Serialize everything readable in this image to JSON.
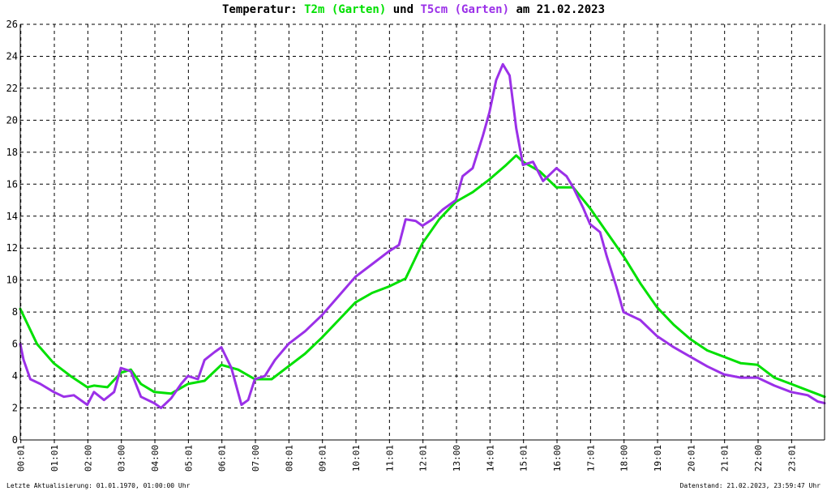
{
  "title": {
    "prefix": "Temperatur: ",
    "series1": "T2m (Garten)",
    "mid": " und ",
    "series2": "T5cm (Garten)",
    "suffix": " am 21.02.2023"
  },
  "footer": {
    "left": "Letzte Aktualisierung: 01.01.1970, 01:00:00 Uhr",
    "right": "Datenstand: 21.02.2023, 23:59:47 Uhr"
  },
  "colors": {
    "t2m": "#00e000",
    "t5cm": "#9b30e8",
    "grid": "#000000",
    "axis": "#000000"
  },
  "chart_data": {
    "type": "line",
    "ylim": [
      0,
      26
    ],
    "xlim": [
      0,
      24
    ],
    "yticks": [
      0,
      2,
      4,
      6,
      8,
      10,
      12,
      14,
      16,
      18,
      20,
      22,
      24,
      26
    ],
    "xticks": [
      "00:01",
      "01:01",
      "02:00",
      "03:00",
      "04:00",
      "05:01",
      "06:01",
      "07:00",
      "08:01",
      "09:01",
      "10:01",
      "11:01",
      "12:01",
      "13:00",
      "14:01",
      "15:01",
      "16:00",
      "17:01",
      "18:00",
      "19:01",
      "20:01",
      "21:01",
      "22:00",
      "23:01"
    ],
    "grid": true,
    "series": [
      {
        "name": "T2m (Garten)",
        "x": [
          0,
          0.5,
          1,
          1.5,
          2,
          2.2,
          2.6,
          3,
          3.3,
          3.6,
          4,
          4.5,
          5,
          5.5,
          6,
          6.5,
          7,
          7.5,
          8,
          8.5,
          9,
          9.5,
          10,
          10.5,
          11,
          11.5,
          12,
          12.5,
          13,
          13.5,
          14,
          14.5,
          14.8,
          15,
          15.5,
          16,
          16.5,
          17,
          17.5,
          18,
          18.5,
          19,
          19.5,
          20,
          20.5,
          21,
          21.5,
          22,
          22.5,
          23,
          23.5,
          24
        ],
        "values": [
          8.2,
          6.0,
          4.8,
          4.0,
          3.3,
          3.4,
          3.3,
          4.2,
          4.4,
          3.5,
          3.0,
          2.9,
          3.5,
          3.7,
          4.7,
          4.4,
          3.8,
          3.8,
          4.6,
          5.4,
          6.4,
          7.5,
          8.6,
          9.2,
          9.6,
          10.1,
          12.3,
          13.8,
          14.9,
          15.5,
          16.3,
          17.2,
          17.8,
          17.4,
          16.8,
          15.8,
          15.8,
          14.5,
          13.0,
          11.5,
          9.8,
          8.3,
          7.2,
          6.3,
          5.6,
          5.2,
          4.8,
          4.7,
          3.9,
          3.5,
          3.1,
          2.7
        ]
      },
      {
        "name": "T5cm (Garten)",
        "x": [
          0,
          0.1,
          0.3,
          0.6,
          1,
          1.3,
          1.6,
          2.0,
          2.2,
          2.5,
          2.8,
          3.0,
          3.3,
          3.6,
          4.0,
          4.2,
          4.5,
          4.8,
          5.0,
          5.3,
          5.5,
          5.8,
          6.0,
          6.3,
          6.6,
          6.8,
          7.0,
          7.3,
          7.6,
          8.0,
          8.5,
          9.0,
          9.5,
          10.0,
          10.5,
          11.0,
          11.3,
          11.5,
          11.8,
          12.0,
          12.3,
          12.6,
          13.0,
          13.2,
          13.5,
          13.8,
          14.0,
          14.2,
          14.4,
          14.6,
          14.8,
          15.0,
          15.3,
          15.6,
          16.0,
          16.3,
          16.5,
          16.8,
          17.0,
          17.3,
          17.5,
          17.8,
          18.0,
          18.5,
          19.0,
          19.5,
          20.0,
          20.5,
          21.0,
          21.5,
          22.0,
          22.5,
          23.0,
          23.5,
          23.8,
          24.0
        ],
        "values": [
          6.0,
          5.0,
          3.8,
          3.5,
          3.0,
          2.7,
          2.8,
          2.2,
          3.0,
          2.5,
          3.0,
          4.5,
          4.3,
          2.7,
          2.3,
          2.0,
          2.6,
          3.5,
          4.0,
          3.8,
          5.0,
          5.5,
          5.8,
          4.5,
          2.2,
          2.5,
          3.8,
          4.0,
          5.0,
          6.0,
          6.8,
          7.8,
          9.0,
          10.2,
          11.0,
          11.8,
          12.2,
          13.8,
          13.7,
          13.4,
          13.8,
          14.4,
          15.0,
          16.5,
          17.0,
          19.0,
          20.5,
          22.5,
          23.5,
          22.8,
          19.5,
          17.2,
          17.4,
          16.2,
          17.0,
          16.5,
          15.8,
          14.5,
          13.5,
          13.0,
          11.5,
          9.5,
          8.0,
          7.5,
          6.5,
          5.8,
          5.2,
          4.6,
          4.1,
          3.9,
          3.9,
          3.4,
          3.0,
          2.8,
          2.4,
          2.3
        ]
      }
    ]
  }
}
